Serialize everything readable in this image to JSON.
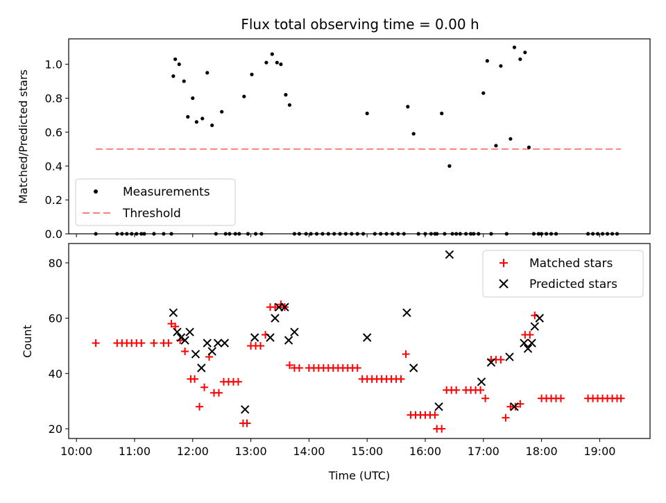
{
  "chart_data": [
    {
      "type": "scatter",
      "title": "Flux total observing time = 0.00 h",
      "xlabel": "",
      "ylabel": "Matched/Predicted stars",
      "ylim": [
        0,
        1.15
      ],
      "yticks": [
        "0.0",
        "0.2",
        "0.4",
        "0.6",
        "0.8",
        "1.0"
      ],
      "legend_position": "lower-left",
      "threshold": {
        "name": "Threshold",
        "value": 0.5,
        "x_range": [
          "10:20",
          "19:22"
        ],
        "color": "#ff7f7f",
        "style": "dashed"
      },
      "series": [
        {
          "name": "Measurements",
          "color": "#000000",
          "marker": "dot",
          "x": [
            "10:20",
            "10:42",
            "10:47",
            "10:52",
            "10:57",
            "11:02",
            "11:07",
            "11:10",
            "11:20",
            "11:30",
            "11:38",
            "11:40",
            "11:42",
            "11:46",
            "11:51",
            "11:55",
            "12:00",
            "12:04",
            "12:10",
            "12:15",
            "12:20",
            "12:24",
            "12:30",
            "12:34",
            "12:38",
            "12:44",
            "12:48",
            "12:53",
            "12:57",
            "13:01",
            "13:05",
            "13:11",
            "13:16",
            "13:22",
            "13:27",
            "13:31",
            "13:36",
            "13:40",
            "13:45",
            "13:50",
            "13:57",
            "14:02",
            "14:08",
            "14:14",
            "14:20",
            "14:26",
            "14:32",
            "14:38",
            "14:44",
            "14:50",
            "14:56",
            "15:00",
            "15:08",
            "15:14",
            "15:20",
            "15:26",
            "15:32",
            "15:38",
            "15:42",
            "15:48",
            "15:53",
            "16:00",
            "16:06",
            "16:10",
            "16:12",
            "16:17",
            "16:20",
            "16:25",
            "16:28",
            "16:32",
            "16:36",
            "16:42",
            "16:47",
            "16:50",
            "16:55",
            "17:00",
            "17:04",
            "17:08",
            "17:13",
            "17:18",
            "17:24",
            "17:28",
            "17:32",
            "17:38",
            "17:43",
            "17:47",
            "17:52",
            "17:57",
            "18:00",
            "18:05",
            "18:10",
            "18:15",
            "18:48",
            "18:53",
            "18:58",
            "19:03",
            "19:08",
            "19:13",
            "19:18"
          ],
          "y": [
            0,
            0,
            0,
            0,
            0,
            0,
            0,
            0,
            0,
            0,
            0,
            0.93,
            1.03,
            1.0,
            0.9,
            0.69,
            0.8,
            0.66,
            0.68,
            0.95,
            0.64,
            0,
            0.72,
            0,
            0,
            0,
            0,
            0.81,
            0,
            0.94,
            0,
            0,
            1.01,
            1.06,
            1.01,
            1.0,
            0.82,
            0.76,
            0,
            0,
            0,
            0,
            0,
            0,
            0,
            0,
            0,
            0,
            0,
            0,
            0,
            0.71,
            0,
            0,
            0,
            0,
            0,
            0,
            0.75,
            0.59,
            0,
            0,
            0,
            0,
            0,
            0.71,
            0,
            0.4,
            0,
            0,
            0,
            0,
            0,
            0,
            0,
            0.83,
            1.02,
            0,
            0.52,
            0.99,
            0,
            0.56,
            1.1,
            1.03,
            1.07,
            0.51,
            0,
            0,
            0,
            0,
            0,
            0,
            0,
            0,
            0,
            0,
            0,
            0,
            0
          ]
        }
      ]
    },
    {
      "type": "scatter",
      "title": "",
      "xlabel": "Time (UTC)",
      "ylabel": "Count",
      "xlim": [
        "09:52",
        "19:52"
      ],
      "xticks": [
        "10:00",
        "11:00",
        "12:00",
        "13:00",
        "14:00",
        "15:00",
        "16:00",
        "17:00",
        "18:00",
        "19:00"
      ],
      "ylim": [
        16.5,
        87
      ],
      "yticks": [
        "20",
        "40",
        "60",
        "80"
      ],
      "legend_position": "top-right",
      "series": [
        {
          "name": "Matched stars",
          "color": "#ff0000",
          "marker": "plus",
          "x": [
            "10:20",
            "10:42",
            "10:47",
            "10:52",
            "10:57",
            "11:02",
            "11:07",
            "11:20",
            "11:30",
            "11:35",
            "11:38",
            "11:42",
            "11:47",
            "11:52",
            "11:58",
            "12:02",
            "12:07",
            "12:12",
            "12:17",
            "12:22",
            "12:27",
            "12:32",
            "12:37",
            "12:42",
            "12:47",
            "12:52",
            "12:56",
            "13:00",
            "13:05",
            "13:10",
            "13:15",
            "13:20",
            "13:25",
            "13:31",
            "13:35",
            "13:40",
            "13:45",
            "13:50",
            "14:00",
            "14:05",
            "14:10",
            "14:15",
            "14:20",
            "14:25",
            "14:30",
            "14:35",
            "14:40",
            "14:45",
            "14:50",
            "14:55",
            "15:00",
            "15:05",
            "15:10",
            "15:15",
            "15:20",
            "15:25",
            "15:30",
            "15:35",
            "15:40",
            "15:45",
            "15:50",
            "15:55",
            "16:00",
            "16:05",
            "16:10",
            "16:12",
            "16:17",
            "16:22",
            "16:27",
            "16:32",
            "16:42",
            "16:47",
            "16:52",
            "16:57",
            "17:02",
            "17:08",
            "17:13",
            "17:18",
            "17:23",
            "17:28",
            "17:33",
            "17:38",
            "17:43",
            "17:48",
            "17:53",
            "18:00",
            "18:05",
            "18:10",
            "18:15",
            "18:20",
            "18:48",
            "18:53",
            "18:58",
            "19:03",
            "19:08",
            "19:13",
            "19:18",
            "19:22"
          ],
          "y": [
            51,
            51,
            51,
            51,
            51,
            51,
            51,
            51,
            51,
            51,
            58,
            57,
            52,
            48,
            38,
            38,
            28,
            35,
            46,
            33,
            33,
            37,
            37,
            37,
            37,
            22,
            22,
            50,
            50,
            50,
            54,
            64,
            64,
            65,
            64,
            43,
            42,
            42,
            42,
            42,
            42,
            42,
            42,
            42,
            42,
            42,
            42,
            42,
            42,
            38,
            38,
            38,
            38,
            38,
            38,
            38,
            38,
            38,
            47,
            25,
            25,
            25,
            25,
            25,
            25,
            20,
            20,
            34,
            34,
            34,
            34,
            34,
            34,
            34,
            31,
            45,
            45,
            45,
            24,
            28,
            28,
            29,
            54,
            54,
            61,
            31,
            31,
            31,
            31,
            31,
            31,
            31,
            31,
            31,
            31,
            31,
            31,
            31
          ]
        },
        {
          "name": "Predicted stars",
          "color": "#000000",
          "marker": "x",
          "x": [
            "11:40",
            "11:44",
            "11:48",
            "11:52",
            "11:57",
            "12:03",
            "12:09",
            "12:15",
            "12:20",
            "12:26",
            "12:33",
            "12:54",
            "13:04",
            "13:20",
            "13:25",
            "13:29",
            "13:35",
            "13:39",
            "13:45",
            "15:00",
            "15:41",
            "15:48",
            "16:14",
            "16:25",
            "16:58",
            "17:08",
            "17:27",
            "17:32",
            "17:42",
            "17:46",
            "17:50",
            "17:53",
            "17:58"
          ],
          "y": [
            62,
            55,
            53,
            52,
            55,
            47,
            42,
            51,
            48,
            51,
            51,
            27,
            53,
            53,
            60,
            64,
            64,
            52,
            55,
            53,
            62,
            42,
            28,
            83,
            37,
            44,
            46,
            28,
            51,
            49,
            51,
            57,
            60
          ]
        }
      ]
    }
  ]
}
